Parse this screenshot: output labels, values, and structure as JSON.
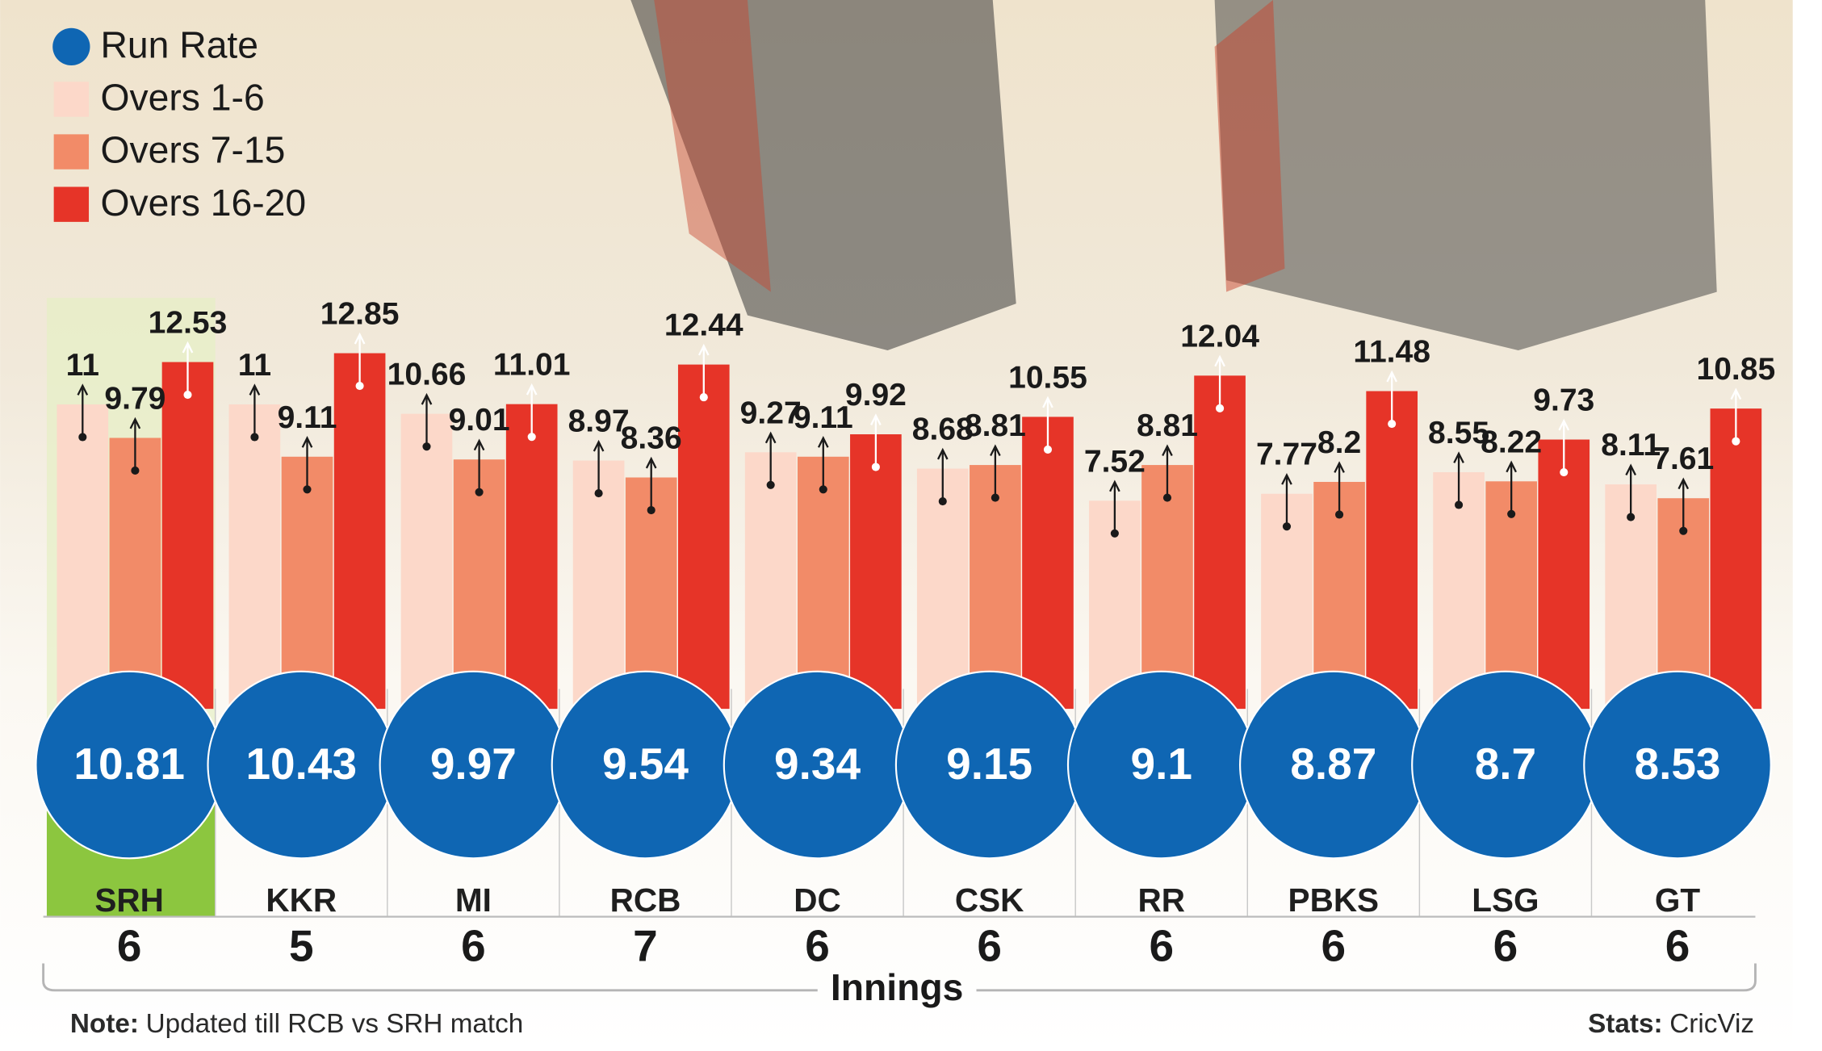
{
  "chart_data": {
    "type": "bar",
    "categories": [
      "SRH",
      "KKR",
      "MI",
      "RCB",
      "DC",
      "CSK",
      "RR",
      "PBKS",
      "LSG",
      "GT"
    ],
    "highlight": "SRH",
    "x_label": "Innings",
    "innings": [
      6,
      5,
      6,
      7,
      6,
      6,
      6,
      6,
      6,
      6
    ],
    "rate": {
      "name": "Run Rate",
      "color": "#0f66b3",
      "values": [
        10.81,
        10.43,
        9.97,
        9.54,
        9.34,
        9.15,
        9.1,
        8.87,
        8.7,
        8.53
      ]
    },
    "series": [
      {
        "name": "Overs 1-6",
        "color": "#fcd8c9",
        "values": [
          11,
          11,
          10.66,
          8.97,
          9.27,
          8.68,
          7.52,
          7.77,
          8.55,
          8.11
        ]
      },
      {
        "name": "Overs 7-15",
        "color": "#f28b68",
        "values": [
          9.79,
          9.11,
          9.01,
          8.36,
          9.11,
          8.81,
          8.81,
          8.2,
          8.22,
          7.61
        ]
      },
      {
        "name": "Overs 16-20",
        "color": "#e63428",
        "values": [
          12.53,
          12.85,
          11.01,
          12.44,
          9.92,
          10.55,
          12.04,
          11.48,
          9.73,
          10.85
        ]
      }
    ],
    "note": {
      "label": "Note:",
      "text": "Updated till RCB vs SRH match"
    },
    "source": {
      "label": "Stats:",
      "text": "CricViz"
    }
  }
}
